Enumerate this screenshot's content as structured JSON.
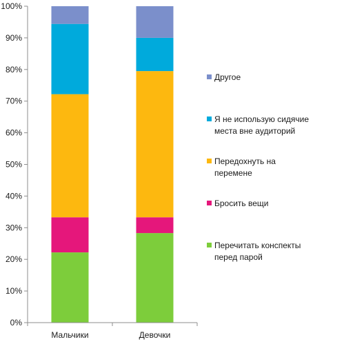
{
  "chart_data": {
    "type": "bar",
    "stacked": "percent",
    "title": "",
    "xlabel": "",
    "ylabel": "",
    "ylim": [
      0,
      100
    ],
    "yticks": [
      "0%",
      "10%",
      "20%",
      "30%",
      "40%",
      "50%",
      "60%",
      "70%",
      "80%",
      "90%",
      "100%"
    ],
    "grid": false,
    "legend_position": "right",
    "categories": [
      "Мальчики",
      "Девочки"
    ],
    "series": [
      {
        "name": "Перечитать конспекты перед парой",
        "legend_lines": [
          "Перечитать конспекты",
          "перед парой"
        ],
        "color": "#7dcd3b",
        "values": [
          22.2,
          28.3
        ]
      },
      {
        "name": "Бросить вещи",
        "legend_lines": [
          "Бросить вещи"
        ],
        "color": "#e5177b",
        "values": [
          11.1,
          5.0
        ]
      },
      {
        "name": "Передохнуть на перемене",
        "legend_lines": [
          "Передохнуть на",
          "перемене"
        ],
        "color": "#fdb80f",
        "values": [
          38.9,
          46.2
        ]
      },
      {
        "name": "Я не использую сидячие места вне аудиторий",
        "legend_lines": [
          "Я не использую сидячие",
          "места вне аудиторий"
        ],
        "color": "#00aadc",
        "values": [
          22.2,
          10.5
        ]
      },
      {
        "name": "Другое",
        "legend_lines": [
          "Другое"
        ],
        "color": "#7b8fcb",
        "values": [
          5.6,
          10.0
        ]
      }
    ]
  }
}
